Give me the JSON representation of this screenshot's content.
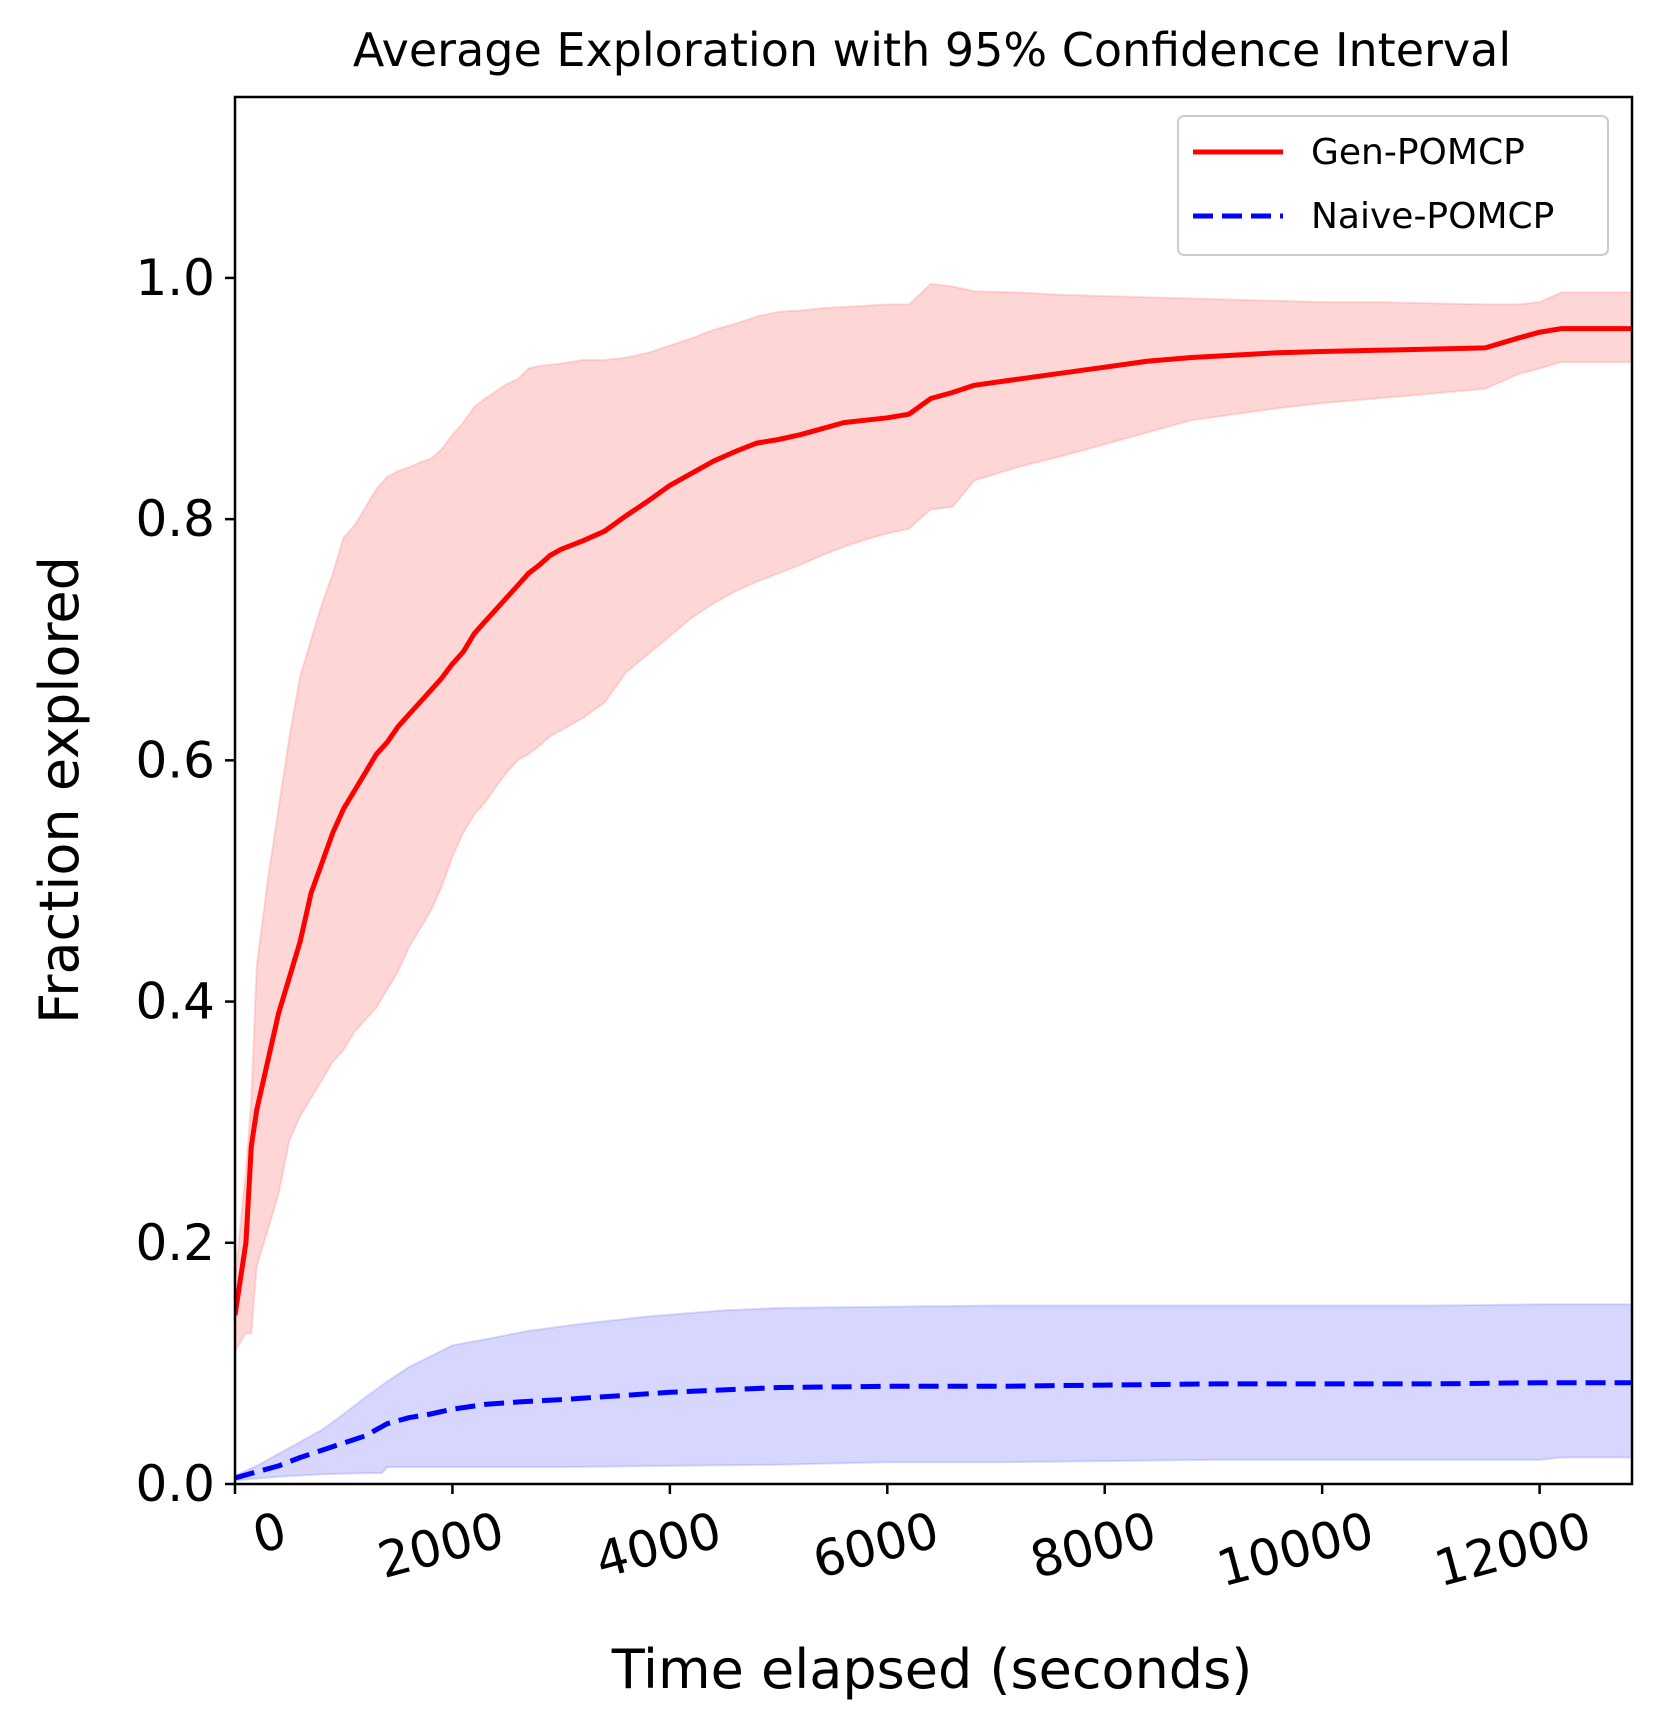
{
  "chart_data": {
    "type": "line",
    "title": "Average Exploration with 95% Confidence Interval",
    "xlabel": "Time elapsed (seconds)",
    "ylabel": "Fraction explored",
    "xlim": [
      0,
      12850
    ],
    "ylim": [
      0,
      1.15
    ],
    "xticks": [
      0,
      2000,
      4000,
      6000,
      8000,
      10000,
      12000
    ],
    "yticks": [
      0.0,
      0.2,
      0.4,
      0.6,
      0.8,
      1.0
    ],
    "xtick_labels": [
      "0",
      "2000",
      "4000",
      "6000",
      "8000",
      "10000",
      "12000"
    ],
    "ytick_labels": [
      "0.0",
      "0.2",
      "0.4",
      "0.6",
      "0.8",
      "1.0"
    ],
    "grid": false,
    "legend_position": "top-right",
    "series": [
      {
        "name": "Gen-POMCP",
        "color": "#ff0000",
        "style": "solid",
        "band_color": "#ff0000",
        "points": [
          [
            0,
            0.14
          ],
          [
            100,
            0.2
          ],
          [
            150,
            0.28
          ],
          [
            200,
            0.31
          ],
          [
            300,
            0.35
          ],
          [
            400,
            0.39
          ],
          [
            500,
            0.42
          ],
          [
            600,
            0.45
          ],
          [
            700,
            0.49
          ],
          [
            800,
            0.515
          ],
          [
            900,
            0.54
          ],
          [
            1000,
            0.56
          ],
          [
            1100,
            0.575
          ],
          [
            1200,
            0.59
          ],
          [
            1300,
            0.605
          ],
          [
            1400,
            0.615
          ],
          [
            1500,
            0.628
          ],
          [
            1600,
            0.638
          ],
          [
            1700,
            0.648
          ],
          [
            1800,
            0.658
          ],
          [
            1900,
            0.668
          ],
          [
            2000,
            0.68
          ],
          [
            2100,
            0.69
          ],
          [
            2200,
            0.705
          ],
          [
            2300,
            0.715
          ],
          [
            2400,
            0.725
          ],
          [
            2500,
            0.735
          ],
          [
            2600,
            0.745
          ],
          [
            2700,
            0.755
          ],
          [
            2800,
            0.762
          ],
          [
            2900,
            0.77
          ],
          [
            3000,
            0.775
          ],
          [
            3200,
            0.782
          ],
          [
            3400,
            0.79
          ],
          [
            3600,
            0.803
          ],
          [
            3800,
            0.815
          ],
          [
            4000,
            0.828
          ],
          [
            4200,
            0.838
          ],
          [
            4400,
            0.848
          ],
          [
            4600,
            0.856
          ],
          [
            4800,
            0.863
          ],
          [
            5000,
            0.866
          ],
          [
            5200,
            0.87
          ],
          [
            5400,
            0.875
          ],
          [
            5600,
            0.88
          ],
          [
            5800,
            0.882
          ],
          [
            6000,
            0.884
          ],
          [
            6200,
            0.887
          ],
          [
            6400,
            0.9
          ],
          [
            6600,
            0.905
          ],
          [
            6800,
            0.911
          ],
          [
            7200,
            0.916
          ],
          [
            7600,
            0.921
          ],
          [
            8000,
            0.926
          ],
          [
            8400,
            0.931
          ],
          [
            8800,
            0.934
          ],
          [
            9200,
            0.936
          ],
          [
            9600,
            0.938
          ],
          [
            10000,
            0.939
          ],
          [
            10500,
            0.94
          ],
          [
            11000,
            0.941
          ],
          [
            11500,
            0.942
          ],
          [
            11800,
            0.95
          ],
          [
            12000,
            0.955
          ],
          [
            12200,
            0.958
          ],
          [
            12850,
            0.958
          ]
        ],
        "lower": [
          [
            0,
            0.11
          ],
          [
            100,
            0.125
          ],
          [
            150,
            0.125
          ],
          [
            200,
            0.18
          ],
          [
            300,
            0.21
          ],
          [
            400,
            0.24
          ],
          [
            500,
            0.285
          ],
          [
            600,
            0.305
          ],
          [
            700,
            0.32
          ],
          [
            800,
            0.335
          ],
          [
            900,
            0.35
          ],
          [
            1000,
            0.36
          ],
          [
            1100,
            0.375
          ],
          [
            1200,
            0.385
          ],
          [
            1300,
            0.395
          ],
          [
            1400,
            0.41
          ],
          [
            1500,
            0.425
          ],
          [
            1600,
            0.445
          ],
          [
            1700,
            0.46
          ],
          [
            1800,
            0.475
          ],
          [
            1900,
            0.495
          ],
          [
            2000,
            0.52
          ],
          [
            2100,
            0.54
          ],
          [
            2200,
            0.555
          ],
          [
            2300,
            0.565
          ],
          [
            2400,
            0.578
          ],
          [
            2500,
            0.59
          ],
          [
            2600,
            0.6
          ],
          [
            2700,
            0.605
          ],
          [
            2800,
            0.612
          ],
          [
            2900,
            0.62
          ],
          [
            3000,
            0.625
          ],
          [
            3200,
            0.635
          ],
          [
            3400,
            0.648
          ],
          [
            3600,
            0.673
          ],
          [
            3800,
            0.688
          ],
          [
            4000,
            0.703
          ],
          [
            4200,
            0.718
          ],
          [
            4400,
            0.73
          ],
          [
            4600,
            0.74
          ],
          [
            4800,
            0.748
          ],
          [
            5000,
            0.755
          ],
          [
            5200,
            0.762
          ],
          [
            5400,
            0.77
          ],
          [
            5600,
            0.777
          ],
          [
            5800,
            0.783
          ],
          [
            6000,
            0.788
          ],
          [
            6200,
            0.792
          ],
          [
            6400,
            0.808
          ],
          [
            6600,
            0.81
          ],
          [
            6800,
            0.832
          ],
          [
            7200,
            0.843
          ],
          [
            7600,
            0.852
          ],
          [
            8000,
            0.862
          ],
          [
            8400,
            0.872
          ],
          [
            8800,
            0.882
          ],
          [
            9200,
            0.887
          ],
          [
            9600,
            0.892
          ],
          [
            10000,
            0.896
          ],
          [
            10500,
            0.9
          ],
          [
            11000,
            0.904
          ],
          [
            11500,
            0.908
          ],
          [
            11800,
            0.92
          ],
          [
            12000,
            0.925
          ],
          [
            12200,
            0.93
          ],
          [
            12850,
            0.93
          ]
        ],
        "upper": [
          [
            0,
            0.17
          ],
          [
            100,
            0.26
          ],
          [
            150,
            0.32
          ],
          [
            200,
            0.43
          ],
          [
            300,
            0.5
          ],
          [
            400,
            0.56
          ],
          [
            500,
            0.62
          ],
          [
            600,
            0.67
          ],
          [
            700,
            0.7
          ],
          [
            800,
            0.73
          ],
          [
            900,
            0.755
          ],
          [
            1000,
            0.785
          ],
          [
            1100,
            0.795
          ],
          [
            1200,
            0.81
          ],
          [
            1300,
            0.825
          ],
          [
            1400,
            0.835
          ],
          [
            1500,
            0.84
          ],
          [
            1600,
            0.843
          ],
          [
            1700,
            0.847
          ],
          [
            1800,
            0.85
          ],
          [
            1900,
            0.858
          ],
          [
            2000,
            0.87
          ],
          [
            2100,
            0.88
          ],
          [
            2200,
            0.893
          ],
          [
            2300,
            0.9
          ],
          [
            2400,
            0.906
          ],
          [
            2500,
            0.912
          ],
          [
            2600,
            0.916
          ],
          [
            2700,
            0.925
          ],
          [
            2800,
            0.927
          ],
          [
            2900,
            0.928
          ],
          [
            3000,
            0.929
          ],
          [
            3200,
            0.932
          ],
          [
            3400,
            0.932
          ],
          [
            3600,
            0.934
          ],
          [
            3800,
            0.938
          ],
          [
            4000,
            0.944
          ],
          [
            4200,
            0.95
          ],
          [
            4400,
            0.957
          ],
          [
            4600,
            0.962
          ],
          [
            4800,
            0.968
          ],
          [
            5000,
            0.972
          ],
          [
            5200,
            0.973
          ],
          [
            5400,
            0.975
          ],
          [
            5600,
            0.976
          ],
          [
            5800,
            0.977
          ],
          [
            6000,
            0.978
          ],
          [
            6200,
            0.978
          ],
          [
            6400,
            0.995
          ],
          [
            6600,
            0.993
          ],
          [
            6800,
            0.989
          ],
          [
            7200,
            0.988
          ],
          [
            7600,
            0.986
          ],
          [
            8000,
            0.985
          ],
          [
            8400,
            0.984
          ],
          [
            8800,
            0.983
          ],
          [
            9200,
            0.982
          ],
          [
            9600,
            0.981
          ],
          [
            10000,
            0.98
          ],
          [
            10500,
            0.98
          ],
          [
            11000,
            0.979
          ],
          [
            11500,
            0.978
          ],
          [
            11800,
            0.978
          ],
          [
            12000,
            0.98
          ],
          [
            12200,
            0.988
          ],
          [
            12850,
            0.988
          ]
        ]
      },
      {
        "name": "Naive-POMCP",
        "color": "#0000ff",
        "style": "dashed",
        "band_color": "#0000ff",
        "points": [
          [
            0,
            0.005
          ],
          [
            200,
            0.01
          ],
          [
            400,
            0.015
          ],
          [
            600,
            0.022
          ],
          [
            800,
            0.028
          ],
          [
            1000,
            0.034
          ],
          [
            1200,
            0.04
          ],
          [
            1300,
            0.045
          ],
          [
            1400,
            0.05
          ],
          [
            1600,
            0.055
          ],
          [
            1800,
            0.058
          ],
          [
            2000,
            0.062
          ],
          [
            2300,
            0.066
          ],
          [
            2600,
            0.068
          ],
          [
            3000,
            0.07
          ],
          [
            3500,
            0.073
          ],
          [
            4000,
            0.076
          ],
          [
            4500,
            0.078
          ],
          [
            5000,
            0.08
          ],
          [
            6000,
            0.081
          ],
          [
            7000,
            0.081
          ],
          [
            8000,
            0.082
          ],
          [
            9000,
            0.083
          ],
          [
            10000,
            0.083
          ],
          [
            11000,
            0.083
          ],
          [
            12000,
            0.084
          ],
          [
            12850,
            0.084
          ]
        ],
        "lower": [
          [
            0,
            0.003
          ],
          [
            400,
            0.006
          ],
          [
            800,
            0.008
          ],
          [
            1200,
            0.009
          ],
          [
            1350,
            0.009
          ],
          [
            1400,
            0.014
          ],
          [
            2000,
            0.014
          ],
          [
            3000,
            0.014
          ],
          [
            4000,
            0.015
          ],
          [
            5000,
            0.016
          ],
          [
            6000,
            0.018
          ],
          [
            7000,
            0.018
          ],
          [
            8000,
            0.019
          ],
          [
            9000,
            0.02
          ],
          [
            10000,
            0.02
          ],
          [
            11000,
            0.02
          ],
          [
            12000,
            0.02
          ],
          [
            12200,
            0.022
          ],
          [
            12850,
            0.022
          ]
        ],
        "upper": [
          [
            0,
            0.007
          ],
          [
            200,
            0.015
          ],
          [
            400,
            0.025
          ],
          [
            600,
            0.035
          ],
          [
            800,
            0.045
          ],
          [
            1000,
            0.058
          ],
          [
            1200,
            0.072
          ],
          [
            1400,
            0.085
          ],
          [
            1600,
            0.097
          ],
          [
            1800,
            0.106
          ],
          [
            2000,
            0.115
          ],
          [
            2300,
            0.12
          ],
          [
            2700,
            0.127
          ],
          [
            3200,
            0.133
          ],
          [
            3800,
            0.139
          ],
          [
            4500,
            0.144
          ],
          [
            5000,
            0.146
          ],
          [
            6000,
            0.147
          ],
          [
            7000,
            0.148
          ],
          [
            8000,
            0.148
          ],
          [
            9000,
            0.148
          ],
          [
            10000,
            0.148
          ],
          [
            11000,
            0.148
          ],
          [
            12000,
            0.149
          ],
          [
            12850,
            0.149
          ]
        ]
      }
    ]
  }
}
